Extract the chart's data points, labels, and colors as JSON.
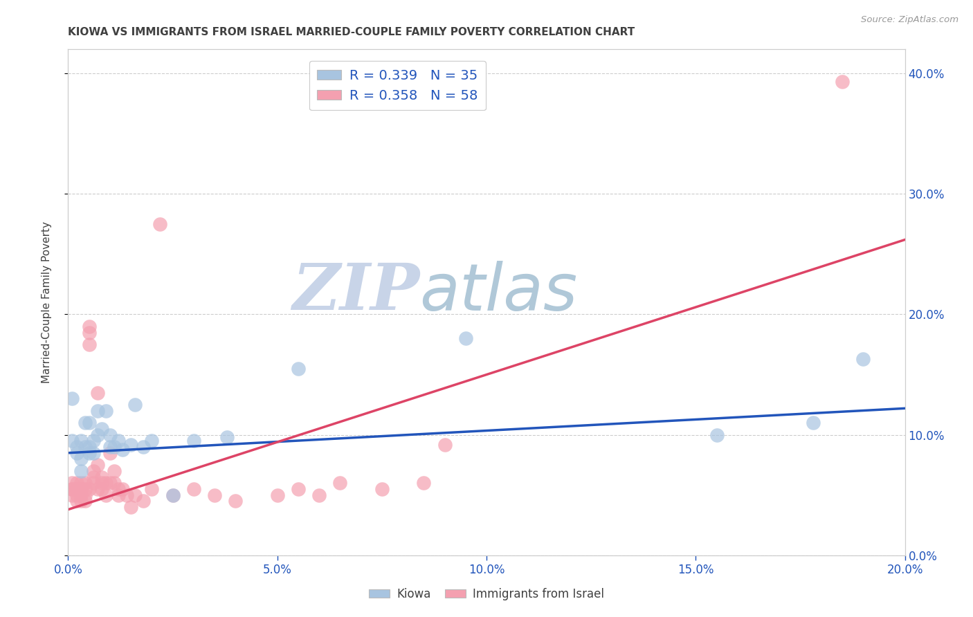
{
  "title": "KIOWA VS IMMIGRANTS FROM ISRAEL MARRIED-COUPLE FAMILY POVERTY CORRELATION CHART",
  "source": "Source: ZipAtlas.com",
  "ylabel": "Married-Couple Family Poverty",
  "xlim": [
    0.0,
    0.2
  ],
  "ylim": [
    0.0,
    0.42
  ],
  "kiowa_R": 0.339,
  "kiowa_N": 35,
  "israel_R": 0.358,
  "israel_N": 58,
  "kiowa_color": "#a8c4e0",
  "israel_color": "#f4a0b0",
  "kiowa_line_color": "#2255bb",
  "israel_line_color": "#dd4466",
  "legend_text_color": "#2255bb",
  "title_color": "#404040",
  "source_color": "#999999",
  "axis_label_color": "#2255bb",
  "background_color": "#ffffff",
  "watermark_zip": "ZIP",
  "watermark_atlas": "atlas",
  "watermark_color_zip": "#c8d4e8",
  "watermark_color_atlas": "#b0c8d8",
  "grid_color": "#cccccc",
  "blue_line_x0": 0.0,
  "blue_line_y0": 0.085,
  "blue_line_x1": 0.2,
  "blue_line_y1": 0.122,
  "pink_line_x0": 0.0,
  "pink_line_y0": 0.038,
  "pink_line_x1": 0.2,
  "pink_line_y1": 0.262,
  "kiowa_x": [
    0.001,
    0.001,
    0.002,
    0.002,
    0.003,
    0.003,
    0.003,
    0.004,
    0.004,
    0.005,
    0.005,
    0.005,
    0.006,
    0.006,
    0.007,
    0.007,
    0.008,
    0.009,
    0.01,
    0.01,
    0.011,
    0.012,
    0.013,
    0.015,
    0.016,
    0.018,
    0.02,
    0.025,
    0.03,
    0.038,
    0.055,
    0.095,
    0.155,
    0.178,
    0.19
  ],
  "kiowa_y": [
    0.095,
    0.13,
    0.09,
    0.085,
    0.07,
    0.08,
    0.095,
    0.09,
    0.11,
    0.085,
    0.09,
    0.11,
    0.085,
    0.095,
    0.1,
    0.12,
    0.105,
    0.12,
    0.09,
    0.1,
    0.09,
    0.095,
    0.088,
    0.092,
    0.125,
    0.09,
    0.095,
    0.05,
    0.095,
    0.098,
    0.155,
    0.18,
    0.1,
    0.11,
    0.163
  ],
  "israel_x": [
    0.001,
    0.001,
    0.001,
    0.001,
    0.002,
    0.002,
    0.002,
    0.002,
    0.002,
    0.003,
    0.003,
    0.003,
    0.003,
    0.003,
    0.004,
    0.004,
    0.004,
    0.004,
    0.005,
    0.005,
    0.005,
    0.005,
    0.006,
    0.006,
    0.006,
    0.007,
    0.007,
    0.007,
    0.008,
    0.008,
    0.008,
    0.009,
    0.009,
    0.01,
    0.01,
    0.011,
    0.011,
    0.012,
    0.012,
    0.013,
    0.014,
    0.015,
    0.016,
    0.018,
    0.02,
    0.022,
    0.025,
    0.03,
    0.035,
    0.04,
    0.05,
    0.055,
    0.06,
    0.065,
    0.075,
    0.085,
    0.09,
    0.185
  ],
  "israel_y": [
    0.055,
    0.06,
    0.055,
    0.05,
    0.055,
    0.06,
    0.055,
    0.05,
    0.045,
    0.055,
    0.06,
    0.055,
    0.05,
    0.045,
    0.06,
    0.055,
    0.05,
    0.045,
    0.055,
    0.175,
    0.185,
    0.19,
    0.065,
    0.06,
    0.07,
    0.075,
    0.135,
    0.055,
    0.065,
    0.06,
    0.055,
    0.06,
    0.05,
    0.085,
    0.06,
    0.07,
    0.06,
    0.055,
    0.05,
    0.055,
    0.05,
    0.04,
    0.05,
    0.045,
    0.055,
    0.275,
    0.05,
    0.055,
    0.05,
    0.045,
    0.05,
    0.055,
    0.05,
    0.06,
    0.055,
    0.06,
    0.092,
    0.393
  ]
}
